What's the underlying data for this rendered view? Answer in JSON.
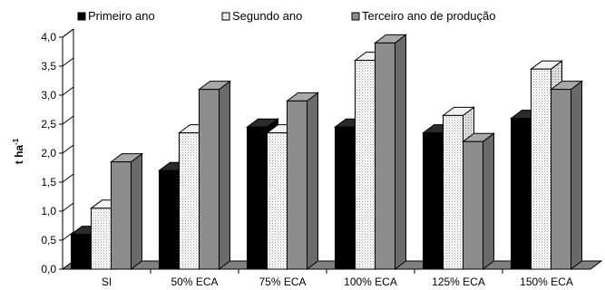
{
  "chart_data": {
    "type": "bar",
    "categories": [
      "SI",
      "50% ECA",
      "75% ECA",
      "100% ECA",
      "125% ECA",
      "150% ECA"
    ],
    "series": [
      {
        "name": "Primeiro ano",
        "color": "#000000",
        "pattern": "solid-black",
        "values": [
          0.6,
          1.7,
          2.45,
          2.45,
          2.35,
          2.6
        ]
      },
      {
        "name": "Segundo ano",
        "color": "#ffffff",
        "pattern": "dotted-white",
        "values": [
          1.05,
          2.35,
          2.35,
          3.6,
          2.65,
          3.45
        ]
      },
      {
        "name": "Terceiro ano de produção",
        "color": "#8c8c8c",
        "pattern": "solid-gray",
        "values": [
          1.85,
          3.1,
          2.9,
          3.9,
          2.2,
          3.1
        ]
      }
    ],
    "ylabel_base": "t ha",
    "ylabel_sup": "-1",
    "ylim": [
      0,
      4
    ],
    "yticks": [
      "0,0",
      "0,5",
      "1,0",
      "1,5",
      "2,0",
      "2,5",
      "3,0",
      "3,5",
      "4,0"
    ],
    "grid": false,
    "legend": "top",
    "style": "3d-bars"
  }
}
